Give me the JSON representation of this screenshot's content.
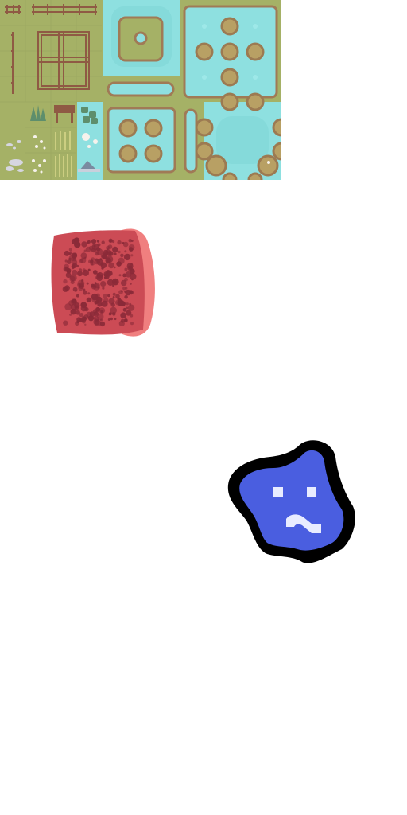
{
  "sprites": {
    "tileset": {
      "name": "terrain-tileset",
      "colors": {
        "grass": "#a5b166",
        "grass_dark": "#98a55e",
        "water": "#8ee0e0",
        "water_deep": "#7fd6d6",
        "border": "#a07a56",
        "border_dark": "#8a5f45",
        "rock": "#b8a064",
        "rock_edge": "#9c7a52",
        "fence": "#8f5a44",
        "bush": "#5e8e6c",
        "flower": "#f6f2ec",
        "pebble": "#d6d6e0"
      }
    },
    "meat": {
      "name": "raw-meat-block",
      "colors": {
        "body": "#cc4b55",
        "side": "#f07f7f",
        "speckle": "#8a2a38"
      }
    },
    "blob": {
      "name": "blue-blob-character",
      "colors": {
        "body": "#4a5ee0",
        "outline": "#000000",
        "eyes": "#e8ecff",
        "mouth": "#e8ecff"
      }
    }
  }
}
